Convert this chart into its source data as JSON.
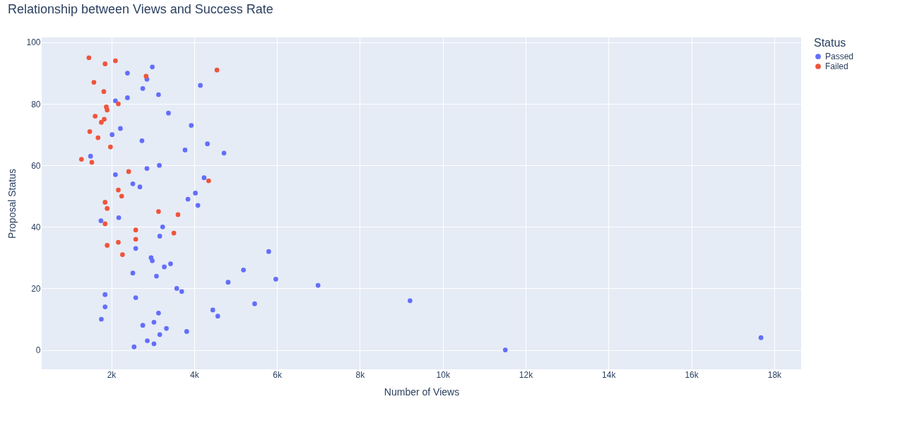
{
  "chart_data": {
    "type": "scatter",
    "title": "Relationship between Views and Success Rate",
    "xlabel": "Number of Views",
    "ylabel": "Proposal Status",
    "legend_title": "Status",
    "legend": "top right",
    "grid": true,
    "marker": "circle",
    "xlim": [
      320,
      18650
    ],
    "ylim": [
      -6.3,
      101.6
    ],
    "xticks": [
      {
        "value": 2000,
        "label": "2k"
      },
      {
        "value": 4000,
        "label": "4k"
      },
      {
        "value": 6000,
        "label": "6k"
      },
      {
        "value": 8000,
        "label": "8k"
      },
      {
        "value": 10000,
        "label": "10k"
      },
      {
        "value": 12000,
        "label": "12k"
      },
      {
        "value": 14000,
        "label": "14k"
      },
      {
        "value": 16000,
        "label": "16k"
      },
      {
        "value": 18000,
        "label": "18k"
      }
    ],
    "yticks": [
      0,
      20,
      40,
      60,
      80,
      100
    ],
    "series": [
      {
        "name": "Passed",
        "color": "#636efa",
        "x": [
          2990,
          2390,
          2860,
          2760,
          3140,
          2390,
          2100,
          3380,
          4150,
          3930,
          2220,
          2020,
          2740,
          4320,
          4720,
          1500,
          3780,
          3160,
          2860,
          2100,
          4240,
          2520,
          2690,
          4030,
          3850,
          4090,
          2180,
          1750,
          3240,
          3170,
          2590,
          5800,
          2960,
          2990,
          3430,
          3280,
          5190,
          2520,
          3090,
          5970,
          4820,
          6990,
          3580,
          3700,
          1850,
          2590,
          9210,
          5460,
          1850,
          4450,
          3140,
          4570,
          1760,
          3030,
          2760,
          3330,
          3820,
          3170,
          17680,
          2870,
          3030,
          2550,
          11510
        ],
        "values": [
          92,
          90,
          88,
          85,
          83,
          82,
          81,
          77,
          86,
          73,
          72,
          70,
          68,
          67,
          64,
          63,
          65,
          60,
          59,
          57,
          56,
          54,
          53,
          51,
          49,
          47,
          43,
          42,
          40,
          37,
          33,
          32,
          30,
          29,
          28,
          27,
          26,
          25,
          24,
          23,
          22,
          21,
          20,
          19,
          18,
          17,
          16,
          15,
          14,
          13,
          12,
          11,
          10,
          9,
          8,
          7,
          6,
          5,
          4,
          3,
          2,
          1,
          0
        ]
      },
      {
        "name": "Failed",
        "color": "#ef553b",
        "x": [
          1460,
          1850,
          2100,
          2840,
          1580,
          1820,
          2170,
          1880,
          1900,
          1610,
          1830,
          1760,
          1480,
          1680,
          1980,
          1280,
          1530,
          2420,
          4550,
          2170,
          2250,
          1850,
          1900,
          3140,
          3610,
          1850,
          2590,
          2590,
          2170,
          1900,
          3510,
          2270,
          4350
        ],
        "values": [
          95,
          93,
          94,
          89,
          87,
          84,
          80,
          79,
          78,
          76,
          75,
          74,
          71,
          69,
          66,
          62,
          61,
          58,
          91,
          52,
          50,
          48,
          46,
          45,
          44,
          41,
          39,
          36,
          35,
          34,
          38,
          31,
          55
        ]
      }
    ]
  }
}
